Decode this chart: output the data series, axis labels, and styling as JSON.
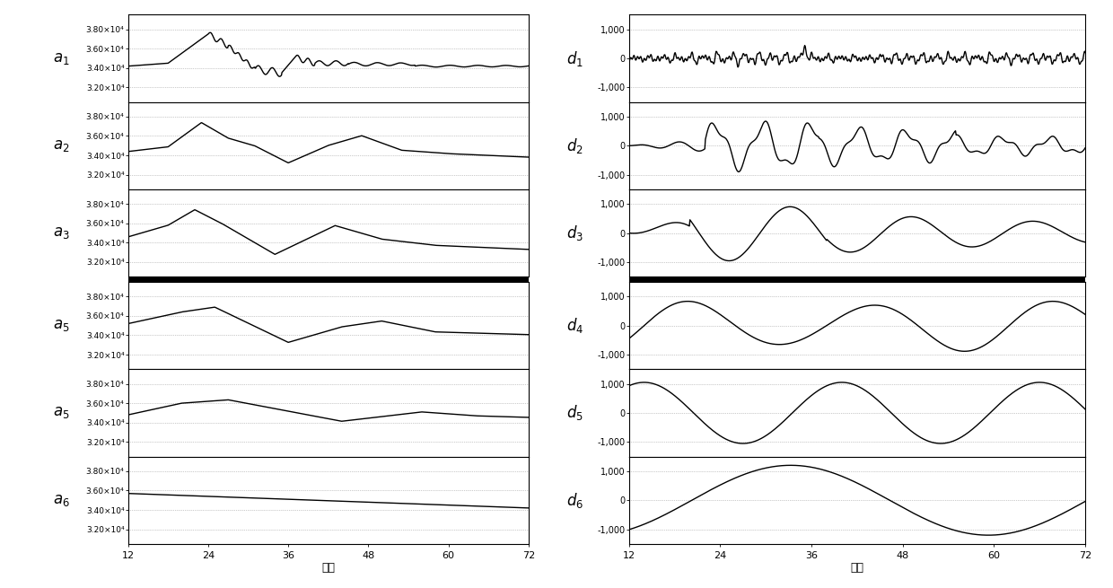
{
  "xlim": [
    12,
    72
  ],
  "xticks": [
    12,
    24,
    36,
    48,
    60,
    72
  ],
  "xlabel": "时间",
  "left_ylim": [
    30500,
    39500
  ],
  "left_yticks": [
    32000,
    34000,
    36000,
    38000
  ],
  "left_ytick_labels": [
    "3.20×10⁴",
    "3.40×10⁴",
    "3.60×10⁴",
    "3.80×10⁴"
  ],
  "right_ylim": [
    -1500,
    1500
  ],
  "right_yticks": [
    -1000,
    0,
    1000
  ],
  "right_ytick_labels": [
    "-1,000",
    "0",
    "1,000"
  ],
  "left_labels": [
    "$a_1$",
    "$a_2$",
    "$a_3$",
    "$a_5$",
    "$a_5$",
    "$a_6$"
  ],
  "right_labels": [
    "$d_1$",
    "$d_2$",
    "$d_3$",
    "$d_4$",
    "$d_5$",
    "$d_6$"
  ],
  "line_color": "#000000",
  "bg_color": "#ffffff",
  "grid_color": "#999999",
  "line_width": 1.0
}
